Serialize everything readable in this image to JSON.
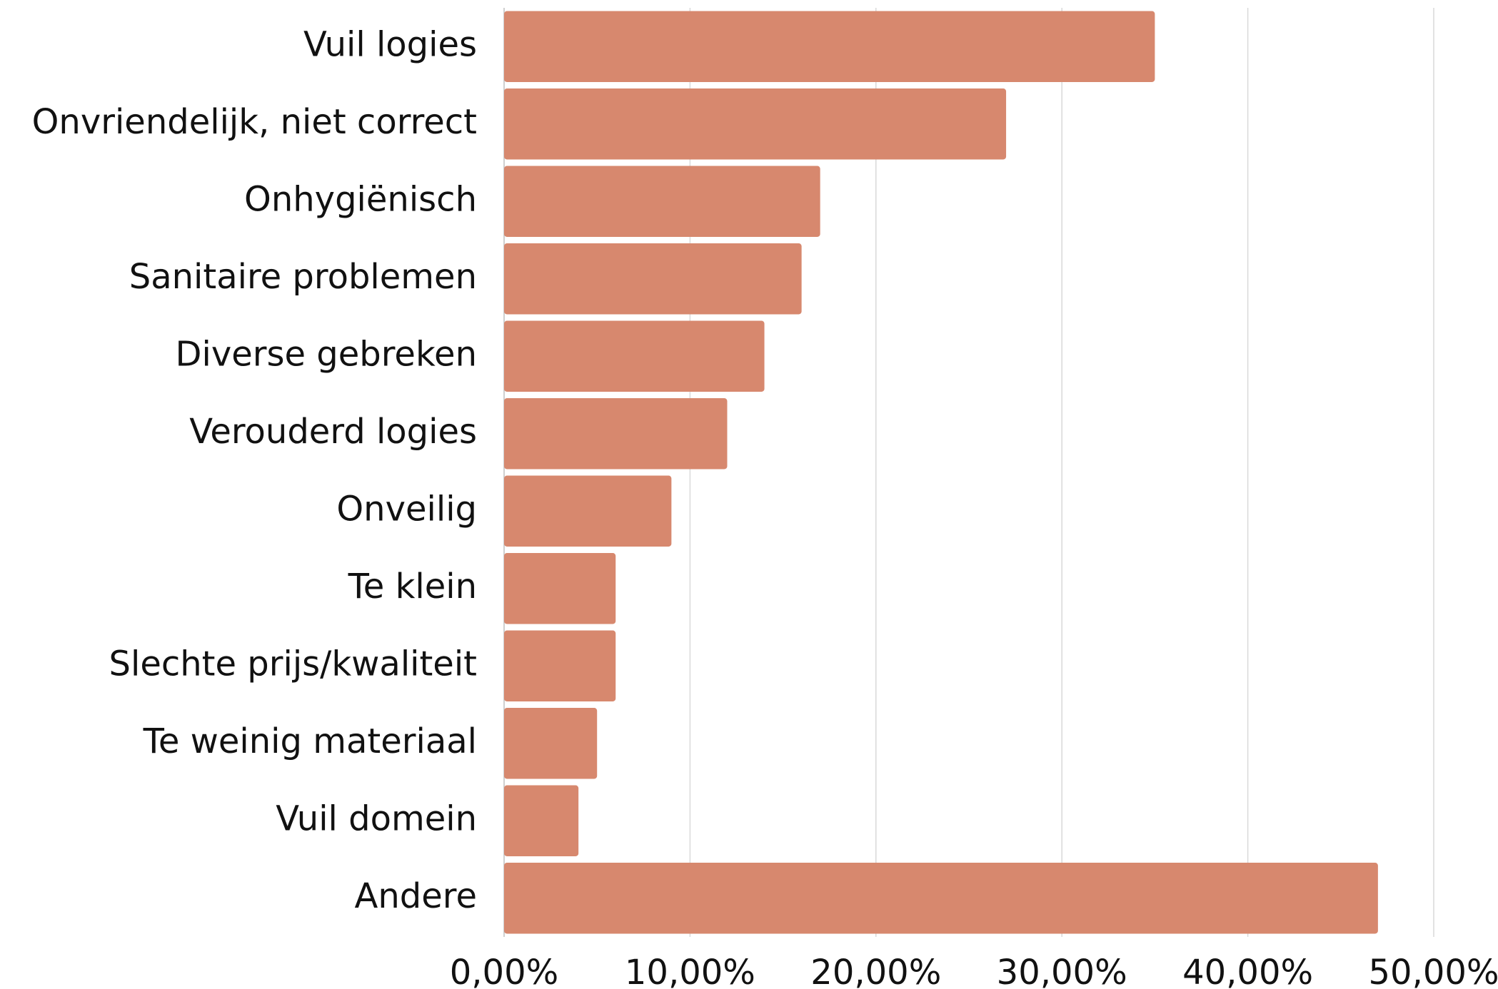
{
  "chart_data": {
    "type": "barh",
    "categories": [
      "Vuil logies",
      "Onvriendelijk, niet correct",
      "Onhygiënisch",
      "Sanitaire problemen",
      "Diverse gebreken",
      "Verouderd logies",
      "Onveilig",
      "Te klein",
      "Slechte prijs/kwaliteit",
      "Te weinig materiaal",
      "Vuil domein",
      "Andere"
    ],
    "values": [
      35,
      27,
      17,
      16,
      14,
      12,
      9,
      6,
      6,
      5,
      4,
      47
    ],
    "color": "#d7886e",
    "xlim": [
      0,
      50
    ],
    "xticks": [
      {
        "value": 0,
        "label": "0,00%"
      },
      {
        "value": 10,
        "label": "10,00%"
      },
      {
        "value": 20,
        "label": "20,00%"
      },
      {
        "value": 30,
        "label": "30,00%"
      },
      {
        "value": 40,
        "label": "40,00%"
      },
      {
        "value": 50,
        "label": "50,00%"
      }
    ],
    "grid": true
  }
}
